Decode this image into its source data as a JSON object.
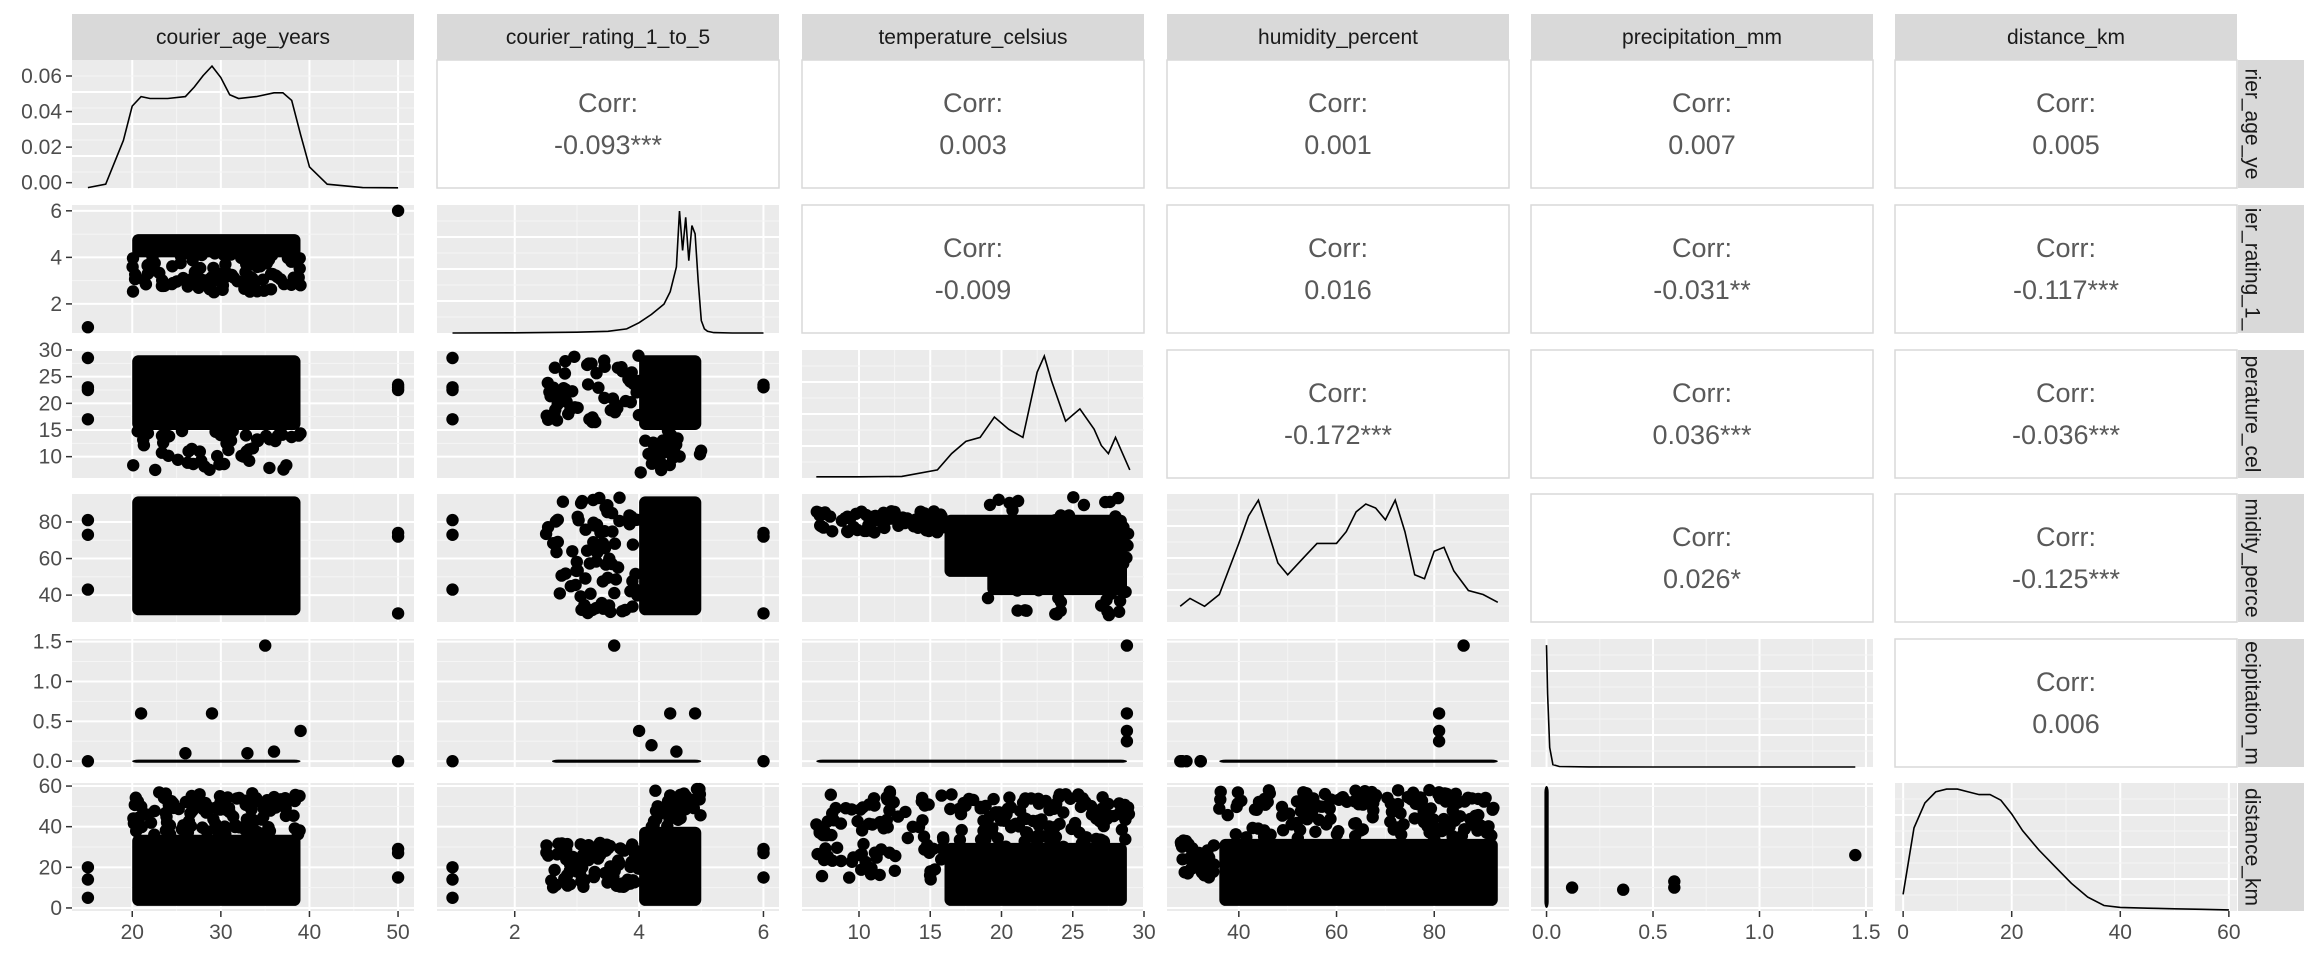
{
  "chart_data": {
    "type": "scatter-matrix",
    "variables": [
      "courier_age_years",
      "courier_rating_1_to_5",
      "temperature_celsius",
      "humidity_percent",
      "precipitation_mm",
      "distance_km"
    ],
    "row_strip_labels": [
      "rier_age_ye",
      "ier_rating_1_",
      "perature_cel",
      "midity_perce",
      "ecipitation_m",
      "distance_km"
    ],
    "corr_label": "Corr:",
    "correlations": [
      {
        "row": 0,
        "col": 1,
        "value": "-0.093***"
      },
      {
        "row": 0,
        "col": 2,
        "value": "0.003"
      },
      {
        "row": 0,
        "col": 3,
        "value": "0.001"
      },
      {
        "row": 0,
        "col": 4,
        "value": "0.007"
      },
      {
        "row": 0,
        "col": 5,
        "value": "0.005"
      },
      {
        "row": 1,
        "col": 2,
        "value": "-0.009"
      },
      {
        "row": 1,
        "col": 3,
        "value": "0.016"
      },
      {
        "row": 1,
        "col": 4,
        "value": "-0.031**"
      },
      {
        "row": 1,
        "col": 5,
        "value": "-0.117***"
      },
      {
        "row": 2,
        "col": 3,
        "value": "-0.172***"
      },
      {
        "row": 2,
        "col": 4,
        "value": "0.036***"
      },
      {
        "row": 2,
        "col": 5,
        "value": "-0.036***"
      },
      {
        "row": 3,
        "col": 4,
        "value": "0.026*"
      },
      {
        "row": 3,
        "col": 5,
        "value": "-0.125***"
      },
      {
        "row": 4,
        "col": 5,
        "value": "0.006"
      }
    ],
    "x_axes": [
      {
        "range": [
          13.2,
          51.8
        ],
        "ticks": [
          20,
          30,
          40,
          50
        ],
        "tick_labels": [
          "20",
          "30",
          "40",
          "50"
        ]
      },
      {
        "range": [
          0.75,
          6.25
        ],
        "ticks": [
          2,
          4,
          6
        ],
        "tick_labels": [
          "2",
          "4",
          "6"
        ]
      },
      {
        "range": [
          6.0,
          30.0
        ],
        "ticks": [
          10,
          15,
          20,
          25,
          30
        ],
        "tick_labels": [
          "10",
          "15",
          "20",
          "25",
          "30"
        ]
      },
      {
        "range": [
          25.3,
          95.3
        ],
        "ticks": [
          40,
          60,
          80
        ],
        "tick_labels": [
          "40",
          "60",
          "80"
        ]
      },
      {
        "range": [
          -0.073,
          1.533
        ],
        "ticks": [
          0.0,
          0.5,
          1.0,
          1.5
        ],
        "tick_labels": [
          "0.0",
          "0.5",
          "1.0",
          "1.5"
        ]
      },
      {
        "range": [
          -1.5,
          61.5
        ],
        "ticks": [
          0,
          20,
          40,
          60
        ],
        "tick_labels": [
          "0",
          "20",
          "40",
          "60"
        ]
      }
    ],
    "y_axes": [
      {
        "range": [
          -0.003,
          0.069
        ],
        "ticks": [
          0.0,
          0.02,
          0.04,
          0.06
        ],
        "tick_labels": [
          "0.00",
          "0.02",
          "0.04",
          "0.06"
        ]
      },
      {
        "range": [
          0.75,
          6.25
        ],
        "ticks": [
          2,
          4,
          6
        ],
        "tick_labels": [
          "2",
          "4",
          "6"
        ]
      },
      {
        "range": [
          6.0,
          30.0
        ],
        "ticks": [
          10,
          15,
          20,
          25,
          30
        ],
        "tick_labels": [
          "10",
          "15",
          "20",
          "25",
          "30"
        ]
      },
      {
        "range": [
          25.3,
          95.3
        ],
        "ticks": [
          40,
          60,
          80
        ],
        "tick_labels": [
          "40",
          "60",
          "80"
        ]
      },
      {
        "range": [
          -0.073,
          1.533
        ],
        "ticks": [
          0.0,
          0.5,
          1.0,
          1.5
        ],
        "tick_labels": [
          "0.0",
          "0.5",
          "1.0",
          "1.5"
        ]
      },
      {
        "range": [
          -1.5,
          61.5
        ],
        "ticks": [
          0,
          20,
          40,
          60
        ],
        "tick_labels": [
          "0",
          "20",
          "40",
          "60"
        ]
      }
    ],
    "densities": [
      {
        "x": [
          15,
          17,
          19,
          20,
          21,
          22,
          24,
          26,
          27,
          28,
          29,
          30,
          31,
          32,
          34,
          36,
          37,
          38,
          39,
          40,
          42,
          46,
          50
        ],
        "y": [
          0.0002,
          0.002,
          0.025,
          0.043,
          0.048,
          0.047,
          0.047,
          0.048,
          0.053,
          0.059,
          0.064,
          0.058,
          0.049,
          0.047,
          0.048,
          0.05,
          0.05,
          0.046,
          0.028,
          0.011,
          0.002,
          0.0002,
          0.0001
        ]
      },
      {
        "x": [
          1.0,
          2.0,
          3.0,
          3.5,
          3.8,
          4.0,
          4.2,
          4.4,
          4.5,
          4.6,
          4.65,
          4.7,
          4.75,
          4.8,
          4.85,
          4.9,
          4.95,
          5.0,
          5.05,
          5.1,
          5.2,
          5.5,
          6.0
        ],
        "y": [
          0.0,
          0.01,
          0.04,
          0.08,
          0.2,
          0.5,
          0.9,
          1.4,
          2.0,
          3.2,
          5.9,
          4.0,
          5.6,
          3.5,
          5.2,
          4.8,
          2.5,
          0.6,
          0.2,
          0.08,
          0.02,
          0.0,
          0.0
        ]
      },
      {
        "x": [
          7.0,
          10.0,
          13.0,
          15.5,
          16.5,
          17.5,
          18.5,
          19.5,
          20.5,
          21.5,
          22.5,
          23.0,
          23.5,
          24.5,
          25.5,
          26.5,
          27.0,
          27.5,
          28.0,
          28.5,
          29.0
        ],
        "y": [
          0.003,
          0.003,
          0.004,
          0.02,
          0.06,
          0.09,
          0.1,
          0.15,
          0.12,
          0.1,
          0.26,
          0.3,
          0.24,
          0.14,
          0.17,
          0.12,
          0.08,
          0.06,
          0.1,
          0.06,
          0.02
        ]
      },
      {
        "x": [
          28,
          30,
          33,
          36,
          40,
          42,
          44,
          46,
          48,
          50,
          53,
          56,
          60,
          62,
          64,
          66,
          68,
          70,
          72,
          74,
          76,
          78,
          80,
          82,
          84,
          87,
          90,
          93
        ],
        "y": [
          0.004,
          0.006,
          0.004,
          0.007,
          0.02,
          0.027,
          0.031,
          0.023,
          0.015,
          0.012,
          0.016,
          0.02,
          0.02,
          0.023,
          0.028,
          0.03,
          0.029,
          0.026,
          0.031,
          0.023,
          0.012,
          0.011,
          0.018,
          0.019,
          0.013,
          0.008,
          0.007,
          0.005
        ]
      },
      {
        "x": [
          0.0,
          0.005,
          0.015,
          0.03,
          0.06,
          0.2,
          0.5,
          1.0,
          1.45
        ],
        "y": [
          50.0,
          30.0,
          8.0,
          1.0,
          0.2,
          0.05,
          0.02,
          0.01,
          0.0
        ]
      },
      {
        "x": [
          0,
          2,
          4,
          6,
          8,
          10,
          12,
          14,
          16,
          18,
          20,
          22,
          25,
          28,
          31,
          34,
          37,
          40,
          45,
          50,
          55,
          60
        ],
        "y": [
          0.006,
          0.03,
          0.039,
          0.043,
          0.044,
          0.044,
          0.043,
          0.042,
          0.042,
          0.04,
          0.035,
          0.029,
          0.022,
          0.016,
          0.01,
          0.005,
          0.002,
          0.0013,
          0.001,
          0.0008,
          0.0006,
          0.0004
        ]
      }
    ]
  }
}
